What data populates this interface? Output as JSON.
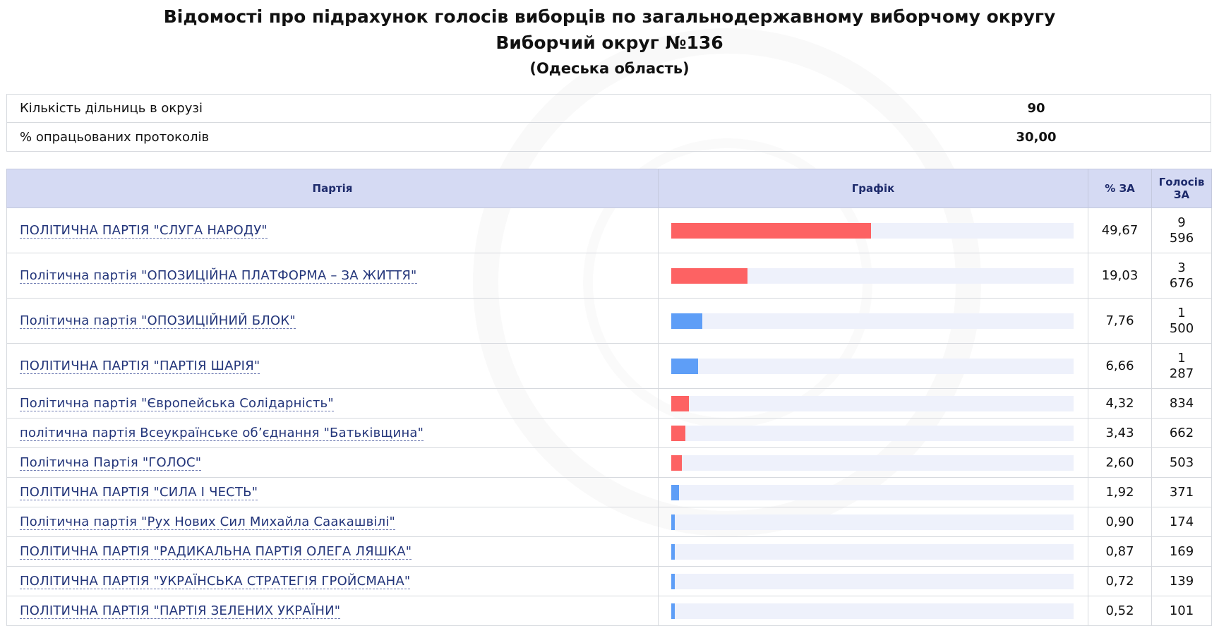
{
  "header": {
    "title": "Відомості про підрахунок голосів виборців по загальнодержавному виборчому округу",
    "subtitle": "Виборчий округ №136",
    "region": "(Одеська область)"
  },
  "info": [
    {
      "label": "Кількість дільниць в окрузі",
      "value": "90"
    },
    {
      "label": "% опрацьованих протоколів",
      "value": "30,00"
    }
  ],
  "table": {
    "headers": {
      "party": "Партія",
      "graph": "Графік",
      "pct": "% ЗА",
      "votes_line1": "Голосів",
      "votes_line2": "ЗА"
    },
    "colors": {
      "red": "#fd6263",
      "blue": "#5e9ef7"
    },
    "rows": [
      {
        "party": "ПОЛІТИЧНА ПАРТІЯ \"СЛУГА НАРОДУ\"",
        "pct_value": 49.67,
        "pct": "49,67",
        "votes_line1": "9",
        "votes_line2": "596",
        "color": "red"
      },
      {
        "party": "Політична партія \"ОПОЗИЦІЙНА ПЛАТФОРМА – ЗА ЖИТТЯ\"",
        "pct_value": 19.03,
        "pct": "19,03",
        "votes_line1": "3",
        "votes_line2": "676",
        "color": "red"
      },
      {
        "party": "Політична партія \"ОПОЗИЦІЙНИЙ БЛОК\"",
        "pct_value": 7.76,
        "pct": "7,76",
        "votes_line1": "1",
        "votes_line2": "500",
        "color": "blue"
      },
      {
        "party": "ПОЛІТИЧНА ПАРТІЯ \"ПАРТІЯ ШАРІЯ\"",
        "pct_value": 6.66,
        "pct": "6,66",
        "votes_line1": "1",
        "votes_line2": "287",
        "color": "blue"
      },
      {
        "party": "Політична партія \"Європейська Солідарність\"",
        "pct_value": 4.32,
        "pct": "4,32",
        "votes_line1": "834",
        "votes_line2": "",
        "color": "red"
      },
      {
        "party": "політична партія Всеукраїнське об’єднання \"Батьківщина\"",
        "pct_value": 3.43,
        "pct": "3,43",
        "votes_line1": "662",
        "votes_line2": "",
        "color": "red"
      },
      {
        "party": "Політична Партія \"ГОЛОС\"",
        "pct_value": 2.6,
        "pct": "2,60",
        "votes_line1": "503",
        "votes_line2": "",
        "color": "red"
      },
      {
        "party": "ПОЛІТИЧНА ПАРТІЯ \"СИЛА І ЧЕСТЬ\"",
        "pct_value": 1.92,
        "pct": "1,92",
        "votes_line1": "371",
        "votes_line2": "",
        "color": "blue"
      },
      {
        "party": "Політична партія \"Рух Нових Сил Михайла Саакашвілі\"",
        "pct_value": 0.9,
        "pct": "0,90",
        "votes_line1": "174",
        "votes_line2": "",
        "color": "blue"
      },
      {
        "party": "ПОЛІТИЧНА ПАРТІЯ \"РАДИКАЛЬНА ПАРТІЯ ОЛЕГА ЛЯШКА\"",
        "pct_value": 0.87,
        "pct": "0,87",
        "votes_line1": "169",
        "votes_line2": "",
        "color": "blue"
      },
      {
        "party": "ПОЛІТИЧНА ПАРТІЯ \"УКРАЇНСЬКА СТРАТЕГІЯ ГРОЙСМАНА\"",
        "pct_value": 0.72,
        "pct": "0,72",
        "votes_line1": "139",
        "votes_line2": "",
        "color": "blue"
      },
      {
        "party": "ПОЛІТИЧНА ПАРТІЯ \"ПАРТІЯ ЗЕЛЕНИХ УКРАЇНИ\"",
        "pct_value": 0.52,
        "pct": "0,52",
        "votes_line1": "101",
        "votes_line2": "",
        "color": "blue"
      }
    ]
  }
}
